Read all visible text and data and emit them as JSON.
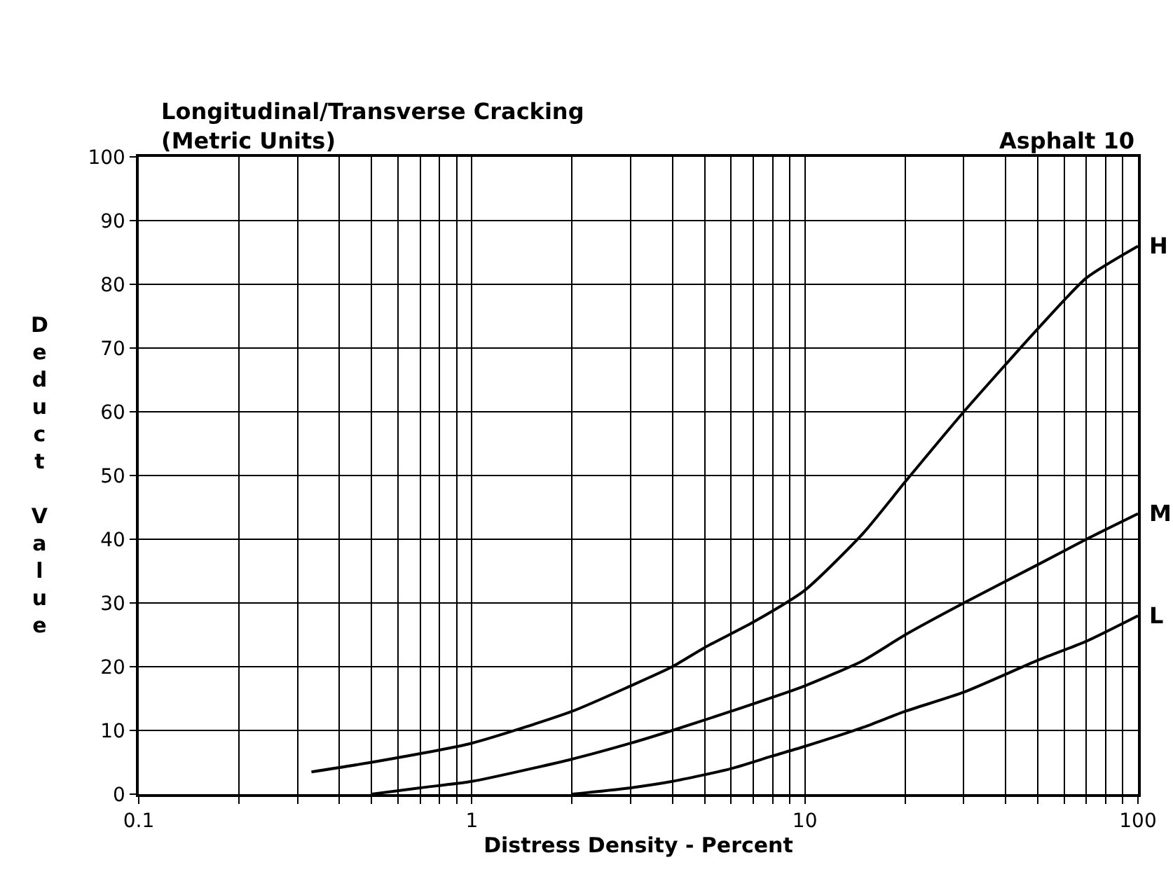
{
  "chart_data": {
    "type": "line",
    "title": "Longitudinal/Transverse Cracking\n(Metric Units)",
    "annotations": [
      "Asphalt 10"
    ],
    "xlabel": "Distress Density - Percent",
    "ylabel": "Deduct Value",
    "log": "x",
    "grid": true,
    "legend": false,
    "marker": "none",
    "line_style": "solid",
    "xlim": [
      0.1,
      100
    ],
    "ylim": [
      0,
      100
    ],
    "xticks": [
      0.1,
      {
        "value": 0.2,
        "label": null
      },
      {
        "value": 0.3,
        "label": null
      },
      {
        "value": 0.4,
        "label": null
      },
      {
        "value": 0.5,
        "label": null
      },
      {
        "value": 0.6,
        "label": null
      },
      {
        "value": 0.7,
        "label": null
      },
      {
        "value": 0.8,
        "label": null
      },
      {
        "value": 0.9,
        "label": null
      },
      1,
      {
        "value": 2,
        "label": null
      },
      {
        "value": 3,
        "label": null
      },
      {
        "value": 4,
        "label": null
      },
      {
        "value": 5,
        "label": null
      },
      {
        "value": 6,
        "label": null
      },
      {
        "value": 7,
        "label": null
      },
      {
        "value": 8,
        "label": null
      },
      {
        "value": 9,
        "label": null
      },
      10,
      {
        "value": 20,
        "label": null
      },
      {
        "value": 30,
        "label": null
      },
      {
        "value": 40,
        "label": null
      },
      {
        "value": 50,
        "label": null
      },
      {
        "value": 60,
        "label": null
      },
      {
        "value": 70,
        "label": null
      },
      {
        "value": 80,
        "label": null
      },
      {
        "value": 90,
        "label": null
      },
      100
    ],
    "yticks": [
      0,
      10,
      20,
      30,
      40,
      50,
      60,
      70,
      80,
      90,
      100
    ],
    "series": [
      {
        "name": "H",
        "color": "#000000",
        "x": [
          0.33,
          0.5,
          1,
          2,
          3,
          4,
          5,
          7,
          10,
          15,
          20,
          30,
          50,
          70,
          100
        ],
        "values": [
          3.5,
          5,
          8,
          13,
          17,
          20,
          23,
          27,
          32,
          41,
          49,
          60,
          73,
          81,
          86
        ]
      },
      {
        "name": "M",
        "color": "#000000",
        "x": [
          0.5,
          0.7,
          1,
          2,
          3,
          4,
          6,
          10,
          15,
          20,
          30,
          50,
          70,
          100
        ],
        "values": [
          0,
          1,
          2,
          5.5,
          8,
          10,
          13,
          17,
          21,
          25,
          30,
          36,
          40,
          44
        ]
      },
      {
        "name": "L",
        "color": "#000000",
        "x": [
          2,
          3,
          4,
          6,
          8,
          10,
          15,
          20,
          30,
          50,
          70,
          100
        ],
        "values": [
          0,
          1,
          2,
          4,
          6,
          7.5,
          10.5,
          13,
          16,
          21,
          24,
          28
        ]
      }
    ]
  }
}
